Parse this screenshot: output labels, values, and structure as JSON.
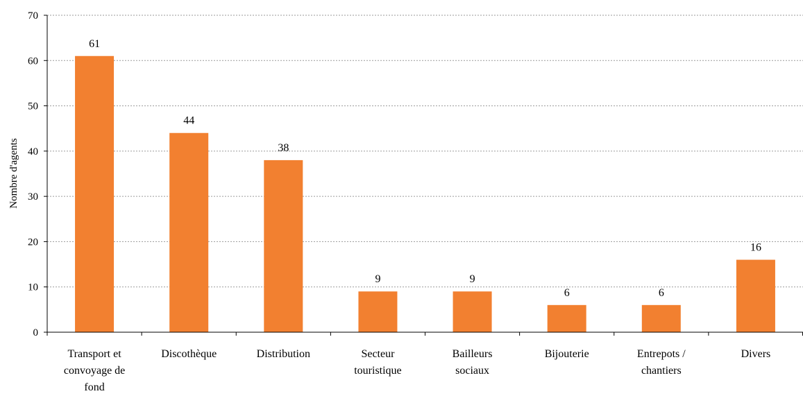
{
  "chart_data": {
    "type": "bar",
    "title": "",
    "xlabel": "",
    "ylabel": "Nombre d'agents",
    "ylim": [
      0,
      70
    ],
    "yticks": [
      0,
      10,
      20,
      30,
      40,
      50,
      60,
      70
    ],
    "grid": true,
    "legend": "none",
    "bar_color": "#F28030",
    "categories": [
      [
        "Transport et",
        "convoyage de",
        "fond"
      ],
      [
        "Discothèque"
      ],
      [
        "Distribution"
      ],
      [
        "Secteur",
        "touristique"
      ],
      [
        "Bailleurs",
        "sociaux"
      ],
      [
        "Bijouterie"
      ],
      [
        "Entrepots /",
        "chantiers"
      ],
      [
        "Divers"
      ]
    ],
    "values": [
      61,
      44,
      38,
      9,
      9,
      6,
      6,
      16
    ],
    "data_labels": [
      "61",
      "44",
      "38",
      "9",
      "9",
      "6",
      "6",
      "16"
    ]
  }
}
